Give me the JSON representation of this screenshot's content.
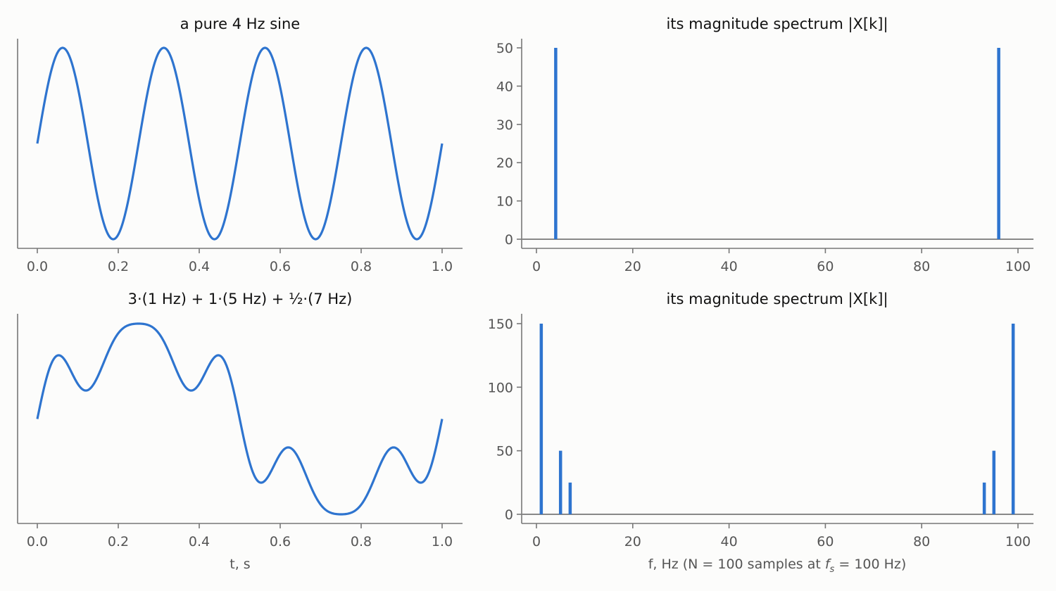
{
  "colors": {
    "signal": "#2e74cf",
    "axis": "#777777",
    "background": "#fcfcfb"
  },
  "chart_data": [
    {
      "type": "line",
      "title": "a pure 4 Hz sine",
      "xlabel": "",
      "ylabel": "",
      "xlim": [
        0,
        1
      ],
      "ylim": [
        -1.1,
        1.1
      ],
      "x_ticks": [
        "0.0",
        "0.2",
        "0.4",
        "0.6",
        "0.8",
        "1.0"
      ],
      "y_ticks_visible": false,
      "series": [
        {
          "components": [
            {
              "amplitude": 1,
              "frequency_hz": 4
            }
          ]
        }
      ]
    },
    {
      "type": "bar",
      "title": "its magnitude spectrum  |X[k]|",
      "xlabel": "",
      "ylabel": "",
      "xlim": [
        -3,
        103
      ],
      "ylim": [
        -2.5,
        52.5
      ],
      "x_ticks": [
        "0",
        "20",
        "40",
        "60",
        "80",
        "100"
      ],
      "y_ticks": [
        "0",
        "10",
        "20",
        "30",
        "40",
        "50"
      ],
      "x": [
        4,
        96
      ],
      "values": [
        50,
        50
      ]
    },
    {
      "type": "line",
      "title": "3·(1 Hz) + 1·(5 Hz) + ½·(7 Hz)",
      "xlabel": "t, s",
      "ylabel": "",
      "xlim": [
        0,
        1
      ],
      "ylim": [
        -3.75,
        3.75
      ],
      "x_ticks": [
        "0.0",
        "0.2",
        "0.4",
        "0.6",
        "0.8",
        "1.0"
      ],
      "y_ticks_visible": false,
      "series": [
        {
          "components": [
            {
              "amplitude": 3,
              "frequency_hz": 1
            },
            {
              "amplitude": 1,
              "frequency_hz": 5
            },
            {
              "amplitude": 0.5,
              "frequency_hz": 7
            }
          ]
        }
      ]
    },
    {
      "type": "bar",
      "title": "its magnitude spectrum  |X[k]|",
      "xlabel_parts": [
        "f, Hz  (N = 100 samples at ",
        "f",
        "s",
        " = 100 Hz)"
      ],
      "ylabel": "",
      "xlim": [
        -3,
        103
      ],
      "ylim": [
        -7.5,
        157.5
      ],
      "x_ticks": [
        "0",
        "20",
        "40",
        "60",
        "80",
        "100"
      ],
      "y_ticks": [
        "0",
        "50",
        "100",
        "150"
      ],
      "x": [
        1,
        5,
        7,
        93,
        95,
        99
      ],
      "values": [
        150,
        50,
        25,
        25,
        50,
        150
      ]
    }
  ]
}
